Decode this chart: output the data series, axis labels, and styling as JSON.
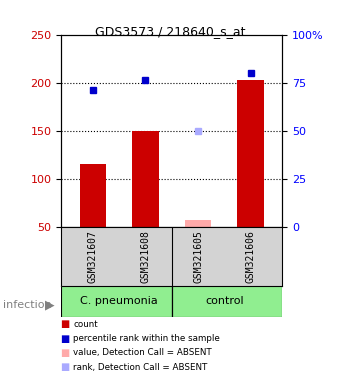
{
  "title": "GDS3573 / 218640_s_at",
  "samples": [
    "GSM321607",
    "GSM321608",
    "GSM321605",
    "GSM321606"
  ],
  "bar_values": [
    115,
    150,
    null,
    203
  ],
  "bar_colors_present": [
    "#cc0000",
    "#cc0000",
    null,
    "#cc0000"
  ],
  "bar_values_absent": [
    null,
    null,
    57,
    null
  ],
  "bar_colors_absent": [
    null,
    null,
    "#ffaaaa",
    null
  ],
  "dot_values_present": [
    192,
    203,
    null,
    210
  ],
  "dot_colors_present": [
    "#0000cc",
    "#0000cc",
    null,
    "#0000cc"
  ],
  "dot_values_absent": [
    null,
    null,
    150,
    null
  ],
  "dot_colors_absent": [
    null,
    null,
    "#aaaaff",
    null
  ],
  "ylim_left": [
    50,
    250
  ],
  "ylim_right": [
    0,
    100
  ],
  "yticks_left": [
    50,
    100,
    150,
    200,
    250
  ],
  "yticks_right": [
    0,
    25,
    50,
    75,
    100
  ],
  "ytick_labels_right": [
    "0",
    "25",
    "50",
    "75",
    "100%"
  ],
  "grid_values": [
    100,
    150,
    200
  ],
  "infection_label": "infection",
  "group_label_1": "C. pneumonia",
  "group_label_2": "control",
  "legend_items": [
    {
      "label": "count",
      "color": "#cc0000"
    },
    {
      "label": "percentile rank within the sample",
      "color": "#0000cc"
    },
    {
      "label": "value, Detection Call = ABSENT",
      "color": "#ffaaaa"
    },
    {
      "label": "rank, Detection Call = ABSENT",
      "color": "#aaaaff"
    }
  ],
  "background_color": "#ffffff",
  "plot_bg_color": "#ffffff",
  "sample_box_color": "#d3d3d3",
  "group_box_color_1": "#90EE90",
  "group_box_color_2": "#90EE90"
}
